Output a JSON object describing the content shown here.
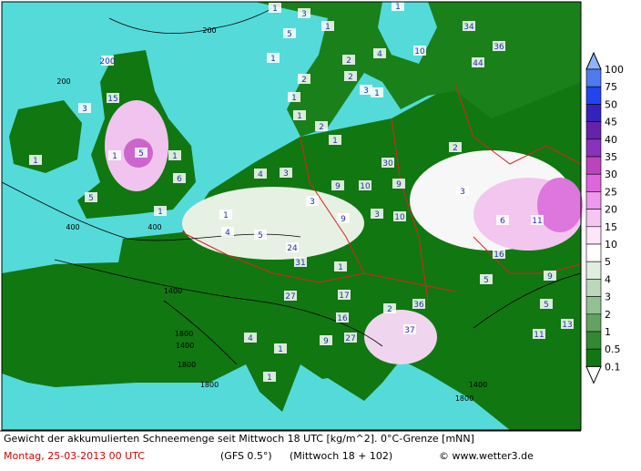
{
  "map": {
    "snow_labels": [
      "1",
      "3",
      "5",
      "1",
      "1",
      "2",
      "4",
      "2",
      "3",
      "2",
      "1",
      "1",
      "2",
      "1",
      "1",
      "1",
      "10",
      "34",
      "44",
      "36",
      "200",
      "15",
      "5",
      "1",
      "1",
      "6",
      "1",
      "1",
      "3",
      "5",
      "4",
      "3",
      "3",
      "9",
      "10",
      "9",
      "10",
      "3",
      "1",
      "4",
      "5",
      "9",
      "24",
      "31",
      "1",
      "3",
      "2",
      "6",
      "11",
      "30",
      "16",
      "5",
      "9",
      "5",
      "13",
      "11",
      "17",
      "27",
      "16",
      "36",
      "2",
      "37",
      "27",
      "9",
      "1",
      "4",
      "1"
    ],
    "contour_labels": [
      "200",
      "200",
      "400",
      "400",
      "1400",
      "1800",
      "1400",
      "1800",
      "1800",
      "1800",
      "1400"
    ]
  },
  "colorbar": {
    "labels": [
      100,
      75,
      50,
      45,
      40,
      35,
      30,
      25,
      20,
      15,
      10,
      5,
      4,
      3,
      2,
      1,
      0.5,
      0.1
    ],
    "colors": [
      "#4f7bef",
      "#2244ee",
      "#3322bb",
      "#6622aa",
      "#8833bb",
      "#bb44bb",
      "#dd66dd",
      "#ee99ee",
      "#f6c6f3",
      "#fde6fb",
      "#ffffff",
      "#dfeedd",
      "#bcd7bb",
      "#94c094",
      "#63a263",
      "#338833",
      "#117711"
    ],
    "over_color": "#8fb4ff",
    "under_color": "#ffffff"
  },
  "footer": {
    "description": "Gewicht der akkumulierten Schneemenge seit Mittwoch 18 UTC [kg/m^2]. 0°C-Grenze [mNN]",
    "date": "Montag, 25-03-2013  00 UTC",
    "model": "(GFS 0.5°)",
    "run": "(Mittwoch 18 + 102)",
    "copyright": "© www.wetter3.de"
  }
}
